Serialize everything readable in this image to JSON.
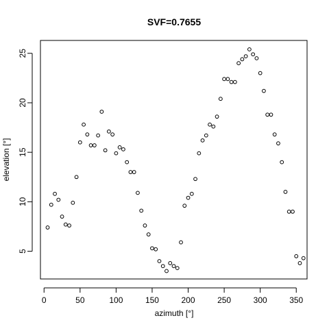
{
  "chart_data": {
    "type": "scatter",
    "title": "SVF=0.7655",
    "xlabel": "azimuth [°]",
    "ylabel": "elevation [°]",
    "xlim": [
      -5,
      365
    ],
    "ylim": [
      2.2,
      26.3
    ],
    "xticks": [
      0,
      50,
      100,
      150,
      200,
      250,
      300,
      350
    ],
    "yticks": [
      5,
      10,
      15,
      20,
      25
    ],
    "grid": false,
    "marker": "open-circle",
    "color": "#000000",
    "points": [
      {
        "x": 5,
        "y": 7.4
      },
      {
        "x": 10,
        "y": 9.7
      },
      {
        "x": 15,
        "y": 10.8
      },
      {
        "x": 20,
        "y": 10.2
      },
      {
        "x": 25,
        "y": 8.5
      },
      {
        "x": 30,
        "y": 7.7
      },
      {
        "x": 35,
        "y": 7.6
      },
      {
        "x": 40,
        "y": 9.9
      },
      {
        "x": 45,
        "y": 12.5
      },
      {
        "x": 50,
        "y": 16.0
      },
      {
        "x": 55,
        "y": 17.8
      },
      {
        "x": 60,
        "y": 16.8
      },
      {
        "x": 65,
        "y": 15.7
      },
      {
        "x": 70,
        "y": 15.7
      },
      {
        "x": 75,
        "y": 16.7
      },
      {
        "x": 80,
        "y": 19.1
      },
      {
        "x": 85,
        "y": 15.2
      },
      {
        "x": 90,
        "y": 17.1
      },
      {
        "x": 95,
        "y": 16.8
      },
      {
        "x": 100,
        "y": 14.9
      },
      {
        "x": 105,
        "y": 15.5
      },
      {
        "x": 110,
        "y": 15.3
      },
      {
        "x": 115,
        "y": 14.0
      },
      {
        "x": 120,
        "y": 13.0
      },
      {
        "x": 125,
        "y": 13.0
      },
      {
        "x": 130,
        "y": 10.9
      },
      {
        "x": 135,
        "y": 9.1
      },
      {
        "x": 140,
        "y": 7.6
      },
      {
        "x": 145,
        "y": 6.7
      },
      {
        "x": 150,
        "y": 5.3
      },
      {
        "x": 155,
        "y": 5.2
      },
      {
        "x": 160,
        "y": 4.0
      },
      {
        "x": 165,
        "y": 3.5
      },
      {
        "x": 170,
        "y": 3.0
      },
      {
        "x": 175,
        "y": 3.8
      },
      {
        "x": 180,
        "y": 3.5
      },
      {
        "x": 185,
        "y": 3.3
      },
      {
        "x": 190,
        "y": 5.9
      },
      {
        "x": 195,
        "y": 9.6
      },
      {
        "x": 200,
        "y": 10.4
      },
      {
        "x": 205,
        "y": 10.8
      },
      {
        "x": 210,
        "y": 12.3
      },
      {
        "x": 215,
        "y": 14.9
      },
      {
        "x": 220,
        "y": 16.2
      },
      {
        "x": 225,
        "y": 16.7
      },
      {
        "x": 230,
        "y": 17.8
      },
      {
        "x": 235,
        "y": 17.6
      },
      {
        "x": 240,
        "y": 18.6
      },
      {
        "x": 245,
        "y": 20.4
      },
      {
        "x": 250,
        "y": 22.4
      },
      {
        "x": 255,
        "y": 22.4
      },
      {
        "x": 260,
        "y": 22.1
      },
      {
        "x": 265,
        "y": 22.1
      },
      {
        "x": 270,
        "y": 24.0
      },
      {
        "x": 275,
        "y": 24.4
      },
      {
        "x": 280,
        "y": 24.7
      },
      {
        "x": 285,
        "y": 25.4
      },
      {
        "x": 290,
        "y": 24.9
      },
      {
        "x": 295,
        "y": 24.5
      },
      {
        "x": 300,
        "y": 23.0
      },
      {
        "x": 305,
        "y": 21.2
      },
      {
        "x": 310,
        "y": 18.8
      },
      {
        "x": 315,
        "y": 18.8
      },
      {
        "x": 320,
        "y": 16.8
      },
      {
        "x": 325,
        "y": 15.9
      },
      {
        "x": 330,
        "y": 14.0
      },
      {
        "x": 335,
        "y": 11.0
      },
      {
        "x": 340,
        "y": 9.0
      },
      {
        "x": 345,
        "y": 9.0
      },
      {
        "x": 350,
        "y": 4.5
      },
      {
        "x": 355,
        "y": 3.8
      },
      {
        "x": 360,
        "y": 4.3
      }
    ]
  }
}
